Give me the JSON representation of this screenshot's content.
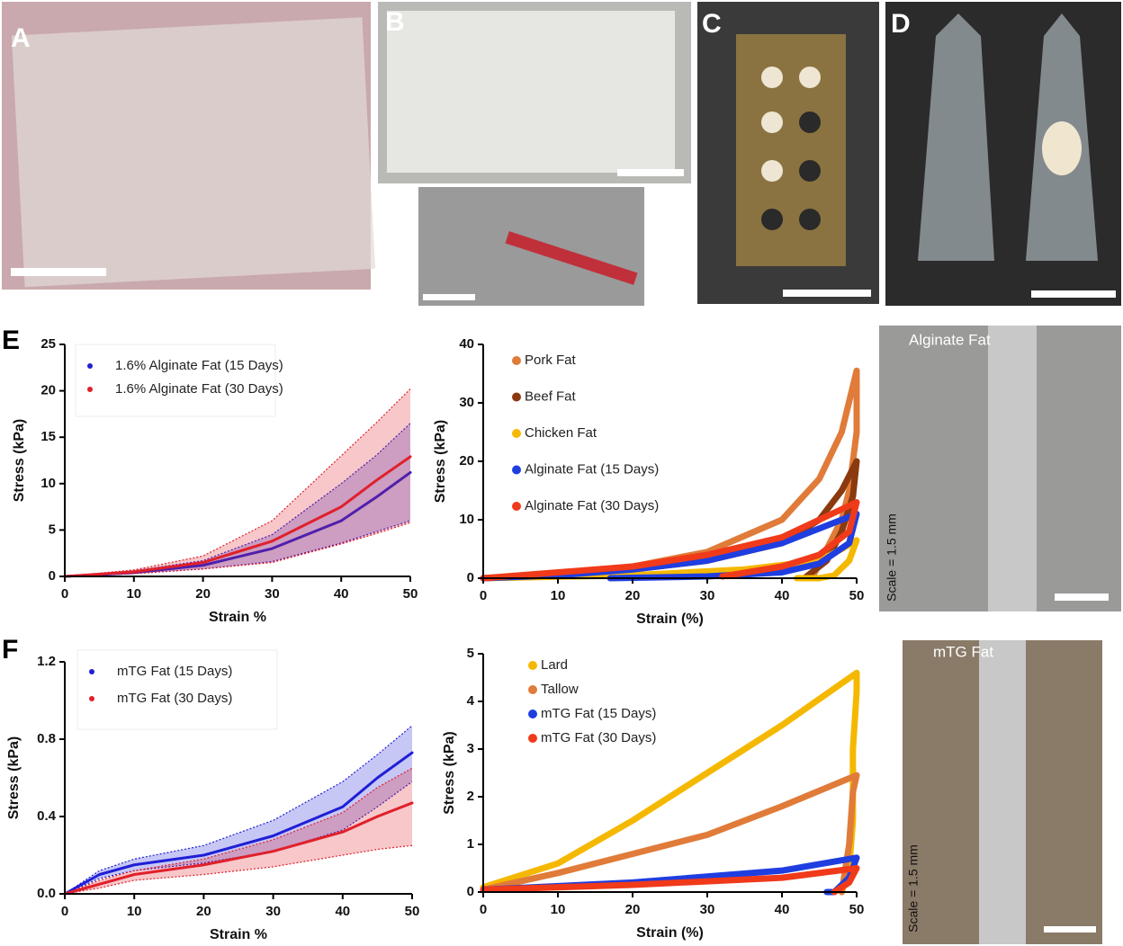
{
  "figure": {
    "panel_labels": [
      "A",
      "B",
      "C",
      "D",
      "E",
      "F"
    ],
    "photo_captions": [
      "Alginate Fat",
      "mTG Fat"
    ],
    "scale_notes": [
      "Scale = 1.5 mm",
      "Scale = 1.5 mm"
    ]
  },
  "chart_data": [
    {
      "type": "band-line",
      "xlabel": "Strain %",
      "ylabel": "Stress (kPa)",
      "xlim": [
        0,
        50
      ],
      "xticks": [
        0,
        10,
        20,
        30,
        40,
        50
      ],
      "ylim": [
        0,
        25
      ],
      "yticks": [
        0,
        5,
        10,
        15,
        20,
        25
      ],
      "legend": "upper left",
      "x": [
        0,
        10,
        20,
        30,
        40,
        45,
        50
      ],
      "series": [
        {
          "name": "1.6% Alginate Fat (15 Days)",
          "color": "#1f1fd6",
          "values": [
            0,
            0.4,
            1.2,
            3,
            6,
            8.5,
            11.2
          ],
          "upper": [
            0,
            0.6,
            1.7,
            4.5,
            10,
            13,
            16.5
          ],
          "lower": [
            0,
            0.3,
            0.8,
            1.6,
            3.6,
            4.8,
            6
          ]
        },
        {
          "name": "1.6% Alginate Fat (30 Days)",
          "color": "#e0202a",
          "values": [
            0,
            0.5,
            1.5,
            3.8,
            7.5,
            10.3,
            12.9
          ],
          "upper": [
            0,
            0.7,
            2.2,
            6,
            13,
            16.5,
            20.2
          ],
          "lower": [
            0,
            0.3,
            0.8,
            1.5,
            3.5,
            4.6,
            5.8
          ]
        }
      ]
    },
    {
      "type": "line",
      "xlabel": "Strain (%)",
      "ylabel": "Stress (kPa)",
      "xlim": [
        0,
        50
      ],
      "xticks": [
        0,
        10,
        20,
        30,
        40,
        50
      ],
      "ylim": [
        0,
        40
      ],
      "yticks": [
        0,
        10,
        20,
        30,
        40
      ],
      "legend": "upper left",
      "series": [
        {
          "name": "Pork Fat",
          "color": "#e07b39",
          "x": [
            0,
            10,
            20,
            30,
            40,
            45,
            48,
            50,
            50,
            50,
            49.5,
            49,
            48,
            46,
            44
          ],
          "values": [
            0,
            0.8,
            2,
            4.5,
            10,
            17,
            25,
            35.5,
            30,
            25,
            20,
            15,
            10,
            5,
            0
          ]
        },
        {
          "name": "Beef Fat",
          "color": "#8b3a0f",
          "x": [
            0,
            20,
            30,
            40,
            45,
            48,
            50,
            49.5,
            48,
            46,
            43
          ],
          "values": [
            0,
            1.5,
            3,
            6,
            10,
            15,
            20,
            14,
            8,
            3,
            0
          ]
        },
        {
          "name": "Chicken Fat",
          "color": "#f5b800",
          "x": [
            0,
            20,
            35,
            45,
            48,
            50,
            49,
            47,
            45,
            42
          ],
          "values": [
            0,
            0.5,
            1.5,
            3,
            5,
            6.5,
            3,
            0.5,
            0,
            0
          ]
        },
        {
          "name": "Alginate Fat (15 Days)",
          "color": "#1f3ee0",
          "x": [
            0,
            10,
            20,
            30,
            40,
            45,
            50,
            49,
            45,
            40,
            30,
            17
          ],
          "values": [
            0,
            0.5,
            1.5,
            3,
            6,
            8.5,
            11,
            6,
            2.5,
            1,
            0.3,
            0
          ]
        },
        {
          "name": "Alginate Fat (30 Days)",
          "color": "#f03a1a",
          "x": [
            0,
            10,
            20,
            30,
            40,
            45,
            50,
            49,
            45,
            40,
            32
          ],
          "values": [
            0,
            1,
            2,
            4,
            7,
            10,
            13,
            8,
            4,
            2,
            0.3
          ]
        }
      ]
    },
    {
      "type": "band-line",
      "xlabel": "Strain %",
      "ylabel": "Stress (kPa)",
      "xlim": [
        0,
        50
      ],
      "xticks": [
        0,
        10,
        20,
        30,
        40,
        50
      ],
      "ylim": [
        0,
        1.2
      ],
      "yticks": [
        {
          "value": 0,
          "label": "0.0"
        },
        0.4,
        0.8,
        1.2
      ],
      "legend": "upper left",
      "x": [
        0,
        5,
        10,
        20,
        30,
        40,
        45,
        50
      ],
      "series": [
        {
          "name": "mTG Fat (15 Days)",
          "color": "#1f1fd6",
          "values": [
            0,
            0.1,
            0.15,
            0.2,
            0.3,
            0.45,
            0.6,
            0.73
          ],
          "upper": [
            0,
            0.12,
            0.18,
            0.25,
            0.38,
            0.58,
            0.72,
            0.87
          ],
          "lower": [
            0,
            0.08,
            0.12,
            0.16,
            0.22,
            0.33,
            0.45,
            0.58
          ]
        },
        {
          "name": "mTG Fat (30 Days)",
          "color": "#e0202a",
          "values": [
            0,
            0.05,
            0.1,
            0.15,
            0.22,
            0.32,
            0.4,
            0.47
          ],
          "upper": [
            0,
            0.07,
            0.12,
            0.18,
            0.28,
            0.42,
            0.55,
            0.65
          ],
          "lower": [
            0,
            0.03,
            0.07,
            0.1,
            0.14,
            0.2,
            0.23,
            0.25
          ]
        }
      ]
    },
    {
      "type": "line",
      "xlabel": "Strain (%)",
      "ylabel": "Stress (kPa)",
      "xlim": [
        0,
        50
      ],
      "xticks": [
        0,
        10,
        20,
        30,
        40,
        50
      ],
      "ylim": [
        0,
        5
      ],
      "yticks": [
        0,
        1,
        2,
        3,
        4,
        5
      ],
      "legend": "upper left",
      "series": [
        {
          "name": "Lard",
          "color": "#f5b800",
          "x": [
            0,
            10,
            20,
            30,
            40,
            50,
            50,
            49.5,
            49.5,
            49,
            48
          ],
          "values": [
            0.1,
            0.6,
            1.5,
            2.5,
            3.5,
            4.6,
            4.2,
            3,
            1.5,
            0.5,
            0
          ]
        },
        {
          "name": "Tallow",
          "color": "#e07b39",
          "x": [
            0,
            10,
            20,
            30,
            40,
            50,
            49.5,
            49,
            48
          ],
          "values": [
            0.05,
            0.4,
            0.8,
            1.2,
            1.8,
            2.45,
            2.1,
            1,
            0
          ]
        },
        {
          "name": "mTG Fat (15 Days)",
          "color": "#1f3ee0",
          "x": [
            0,
            20,
            40,
            50,
            49,
            47,
            46
          ],
          "values": [
            0.05,
            0.2,
            0.45,
            0.72,
            0.3,
            0,
            0
          ]
        },
        {
          "name": "mTG Fat (30 Days)",
          "color": "#f03a1a",
          "x": [
            0,
            20,
            40,
            50,
            49,
            47
          ],
          "values": [
            0.05,
            0.15,
            0.3,
            0.5,
            0.2,
            0
          ]
        }
      ]
    }
  ]
}
